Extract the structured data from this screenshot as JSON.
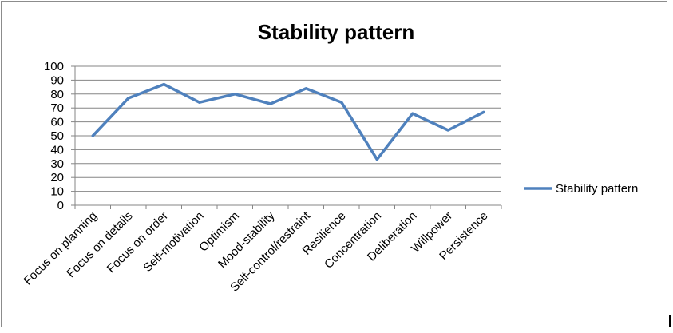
{
  "chart_data": {
    "type": "line",
    "title": "Stability pattern",
    "xlabel": "",
    "ylabel": "",
    "categories": [
      "Focus on planning",
      "Focus on details",
      "Focus on order",
      "Self-motivation",
      "Optimism",
      "Mood-stability",
      "Self-control/restraint",
      "Resilience",
      "Concentration",
      "Deliberation",
      "Willpower",
      "Persistence"
    ],
    "series": [
      {
        "name": "Stability pattern",
        "color": "#4f81bd",
        "values": [
          50,
          77,
          87,
          74,
          80,
          73,
          84,
          74,
          33,
          66,
          54,
          67
        ]
      }
    ],
    "ylim": [
      0,
      100
    ],
    "yticks": [
      0,
      10,
      20,
      30,
      40,
      50,
      60,
      70,
      80,
      90,
      100
    ],
    "grid": true,
    "legend_position": "right"
  }
}
